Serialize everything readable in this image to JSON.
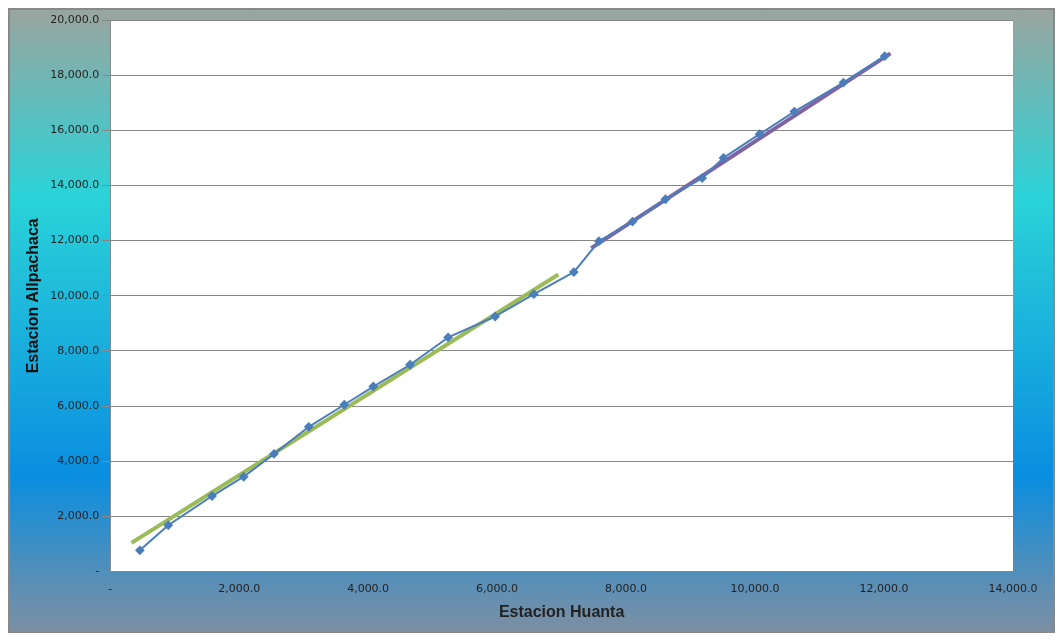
{
  "chart_data": {
    "type": "line",
    "xlabel": "Estacion Huanta",
    "ylabel": "Estacion Allpachaca",
    "xlim": [
      0,
      14000
    ],
    "ylim": [
      0,
      20000
    ],
    "xticks": [
      {
        "value": 0,
        "label": "-"
      },
      {
        "value": 2000,
        "label": "2,000.0"
      },
      {
        "value": 4000,
        "label": "4,000.0"
      },
      {
        "value": 6000,
        "label": "6,000.0"
      },
      {
        "value": 8000,
        "label": "8,000.0"
      },
      {
        "value": 10000,
        "label": "10,000.0"
      },
      {
        "value": 12000,
        "label": "12,000.0"
      },
      {
        "value": 14000,
        "label": "14,000.0"
      }
    ],
    "yticks": [
      {
        "value": 0,
        "label": "-"
      },
      {
        "value": 2000,
        "label": "2,000.0"
      },
      {
        "value": 4000,
        "label": "4,000.0"
      },
      {
        "value": 6000,
        "label": "6,000.0"
      },
      {
        "value": 8000,
        "label": "8,000.0"
      },
      {
        "value": 10000,
        "label": "10,000.0"
      },
      {
        "value": 12000,
        "label": "12,000.0"
      },
      {
        "value": 14000,
        "label": "14,000.0"
      },
      {
        "value": 16000,
        "label": "16,000.0"
      },
      {
        "value": 18000,
        "label": "18,000.0"
      },
      {
        "value": 20000,
        "label": "20,000.0"
      }
    ],
    "grid": "y",
    "legend": false,
    "series": [
      {
        "color": "#4a7ebb",
        "marker": "diamond",
        "x": [
          460,
          900,
          1580,
          2070,
          2540,
          3080,
          3630,
          4080,
          4650,
          5240,
          5970,
          6570,
          7190,
          7580,
          8100,
          8610,
          9180,
          9510,
          10070,
          10610,
          11370,
          12010
        ],
        "values": [
          770,
          1680,
          2740,
          3440,
          4270,
          5250,
          6050,
          6710,
          7500,
          8490,
          9250,
          10060,
          10860,
          11980,
          12690,
          13500,
          14270,
          15000,
          15860,
          16680,
          17730,
          18690
        ]
      },
      {
        "type": "line",
        "color": "#9bbb59",
        "marker": "none",
        "x": [
          330,
          6950
        ],
        "values": [
          1040,
          10770
        ]
      },
      {
        "type": "line",
        "color": "#8064a2",
        "marker": "none",
        "x": [
          7460,
          12100
        ],
        "values": [
          11730,
          18790
        ]
      }
    ]
  }
}
